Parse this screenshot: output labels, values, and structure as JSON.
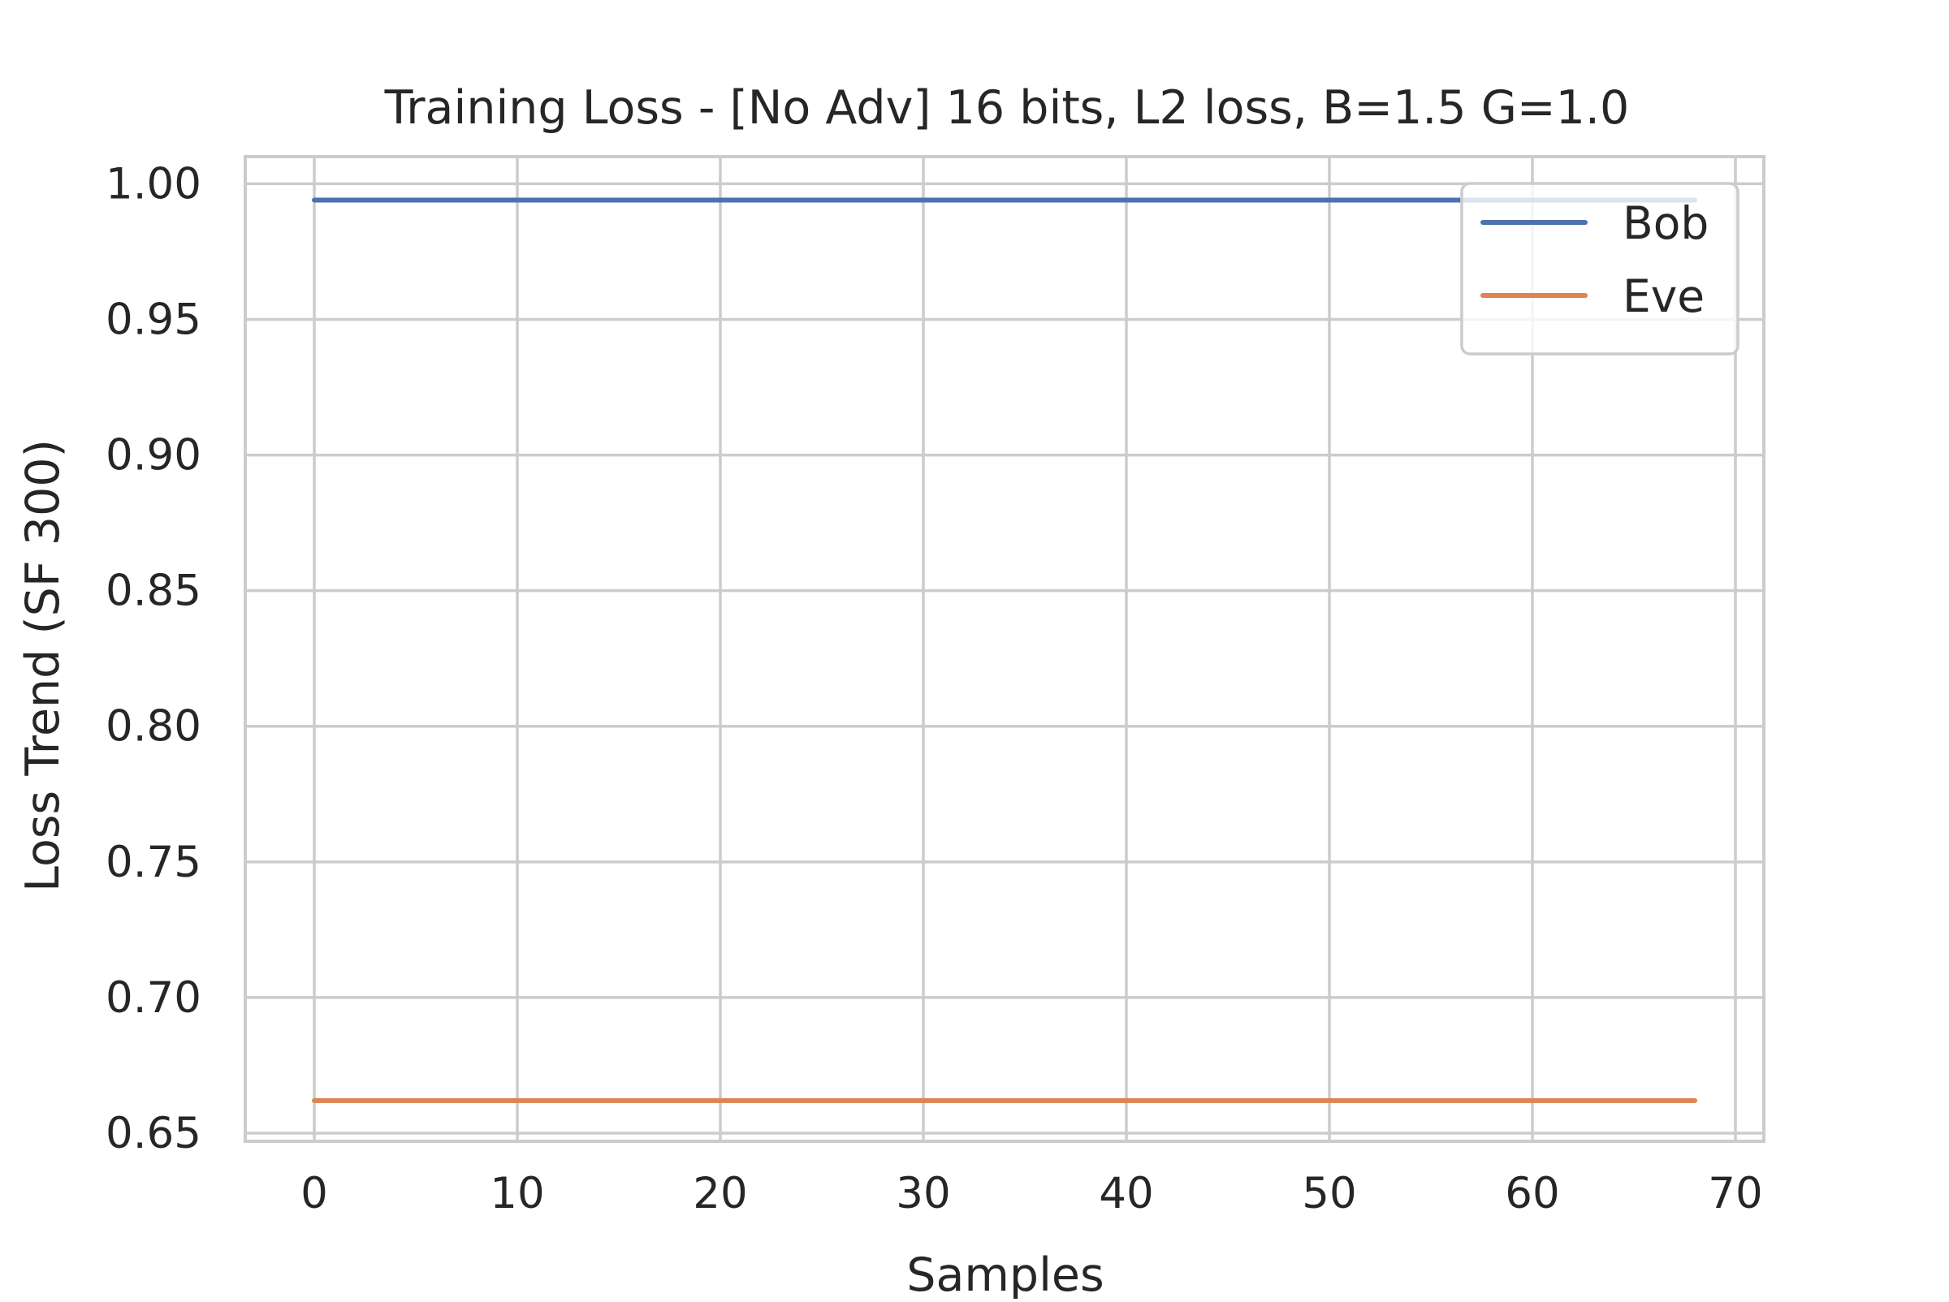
{
  "chart_data": {
    "type": "line",
    "title": "Training Loss - [No Adv] 16 bits, L2 loss, B=1.5 G=1.0",
    "xlabel": "Samples",
    "ylabel": "Loss Trend (SF 300)",
    "xlim": [
      -3.4,
      71.4
    ],
    "ylim": [
      0.647,
      1.01
    ],
    "x_ticks": [
      0,
      10,
      20,
      30,
      40,
      50,
      60,
      70
    ],
    "x_tick_labels": [
      "0",
      "10",
      "20",
      "30",
      "40",
      "50",
      "60",
      "70"
    ],
    "y_ticks": [
      0.65,
      0.7,
      0.75,
      0.8,
      0.85,
      0.9,
      0.95,
      1.0
    ],
    "y_tick_labels": [
      "0.65",
      "0.70",
      "0.75",
      "0.80",
      "0.85",
      "0.90",
      "0.95",
      "1.00"
    ],
    "grid": true,
    "legend_position": "top-right",
    "series": [
      {
        "name": "Bob",
        "color": "#4c72b0",
        "x": [
          0,
          68
        ],
        "y": [
          0.994,
          0.994
        ]
      },
      {
        "name": "Eve",
        "color": "#dd8452",
        "x": [
          0,
          68
        ],
        "y": [
          0.662,
          0.662
        ]
      }
    ]
  }
}
